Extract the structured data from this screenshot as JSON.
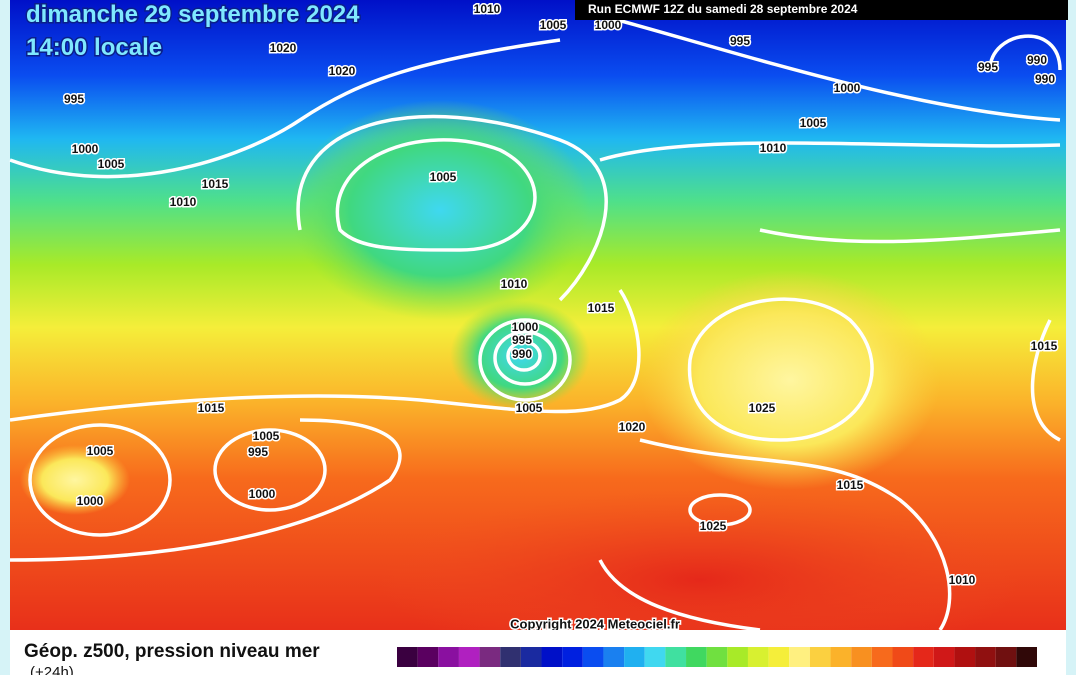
{
  "header": {
    "date": "dimanche 29 septembre 2024",
    "time": "14:00 locale",
    "run": "Run ECMWF 12Z du samedi 28 septembre 2024"
  },
  "isobar_labels": [
    1010,
    1005,
    1000,
    995,
    1020,
    1020,
    995,
    1000,
    1005,
    1015,
    1010,
    1005,
    995,
    990,
    990,
    1000,
    1005,
    1010,
    1010,
    1015,
    1000,
    995,
    990,
    1005,
    1015,
    1005,
    1000,
    1005,
    995,
    1000,
    1020,
    1025,
    1015,
    1015,
    1025,
    1010
  ],
  "copyright": "Copyright 2024 Meteociel.fr",
  "legend": {
    "title": "Géop. z500, pression niveau mer",
    "lead": "(+24h)"
  }
}
